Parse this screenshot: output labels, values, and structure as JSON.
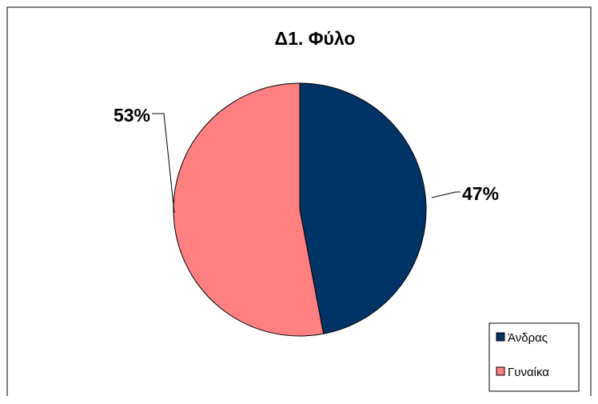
{
  "chart_data": {
    "type": "pie",
    "title": "Δ1. Φύλο",
    "categories": [
      "Άνδρας",
      "Γυναίκα"
    ],
    "values": [
      47,
      53
    ],
    "data_labels": [
      "47%",
      "53%"
    ],
    "colors": [
      "#003366",
      "#ff8080"
    ],
    "legend_position": "bottom-right",
    "start_angle": "12 o'clock",
    "direction": "clockwise"
  }
}
